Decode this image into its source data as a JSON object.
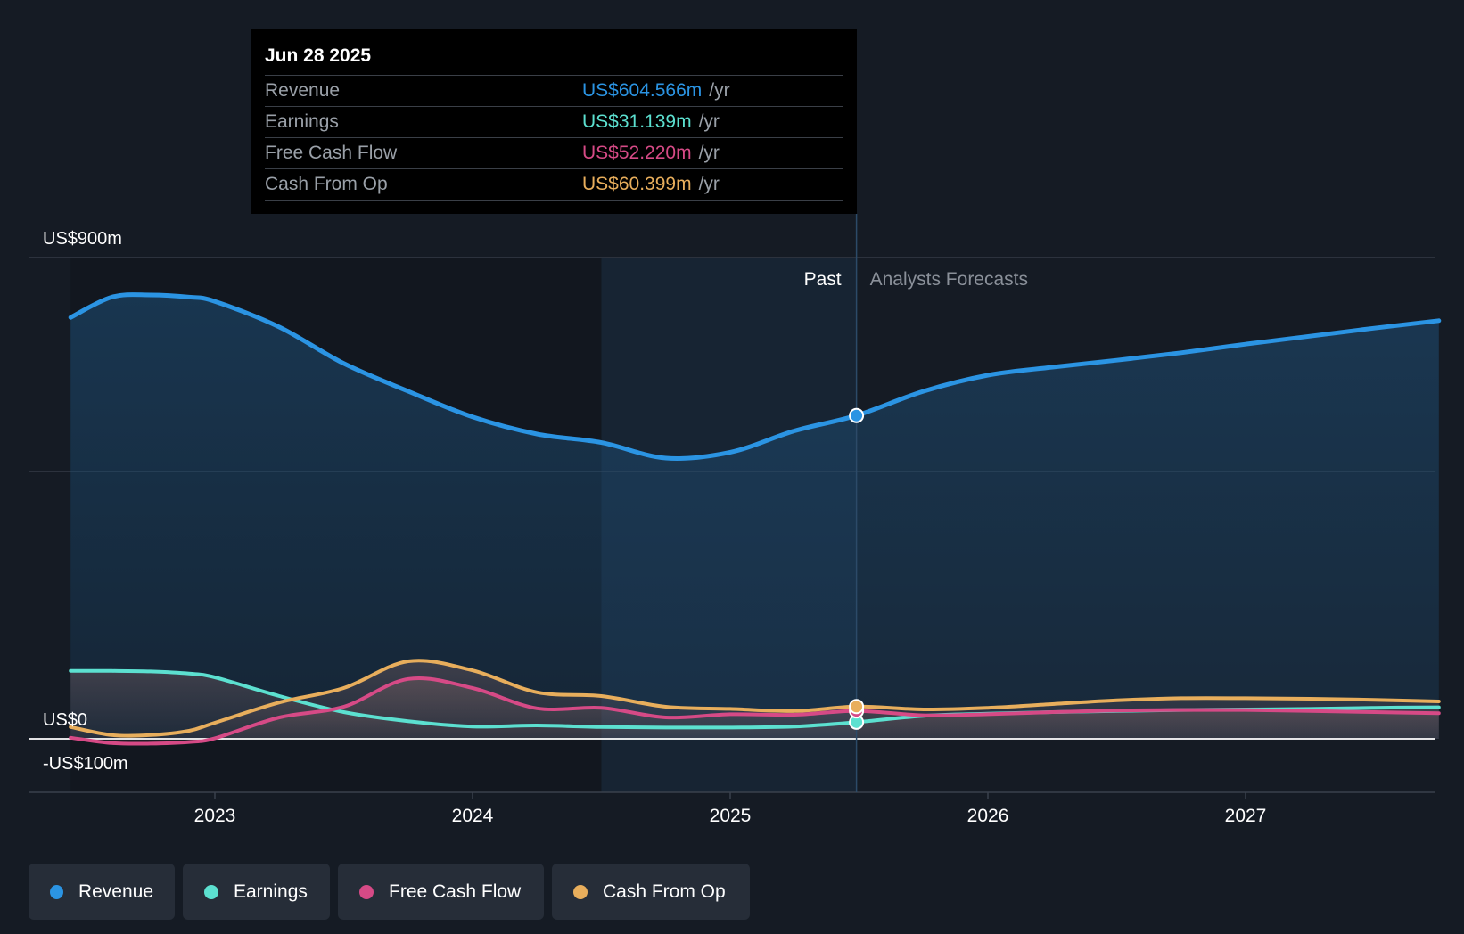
{
  "tooltip": {
    "date": "Jun 28 2025",
    "rows": [
      {
        "label": "Revenue",
        "value": "US$604.566m",
        "unit": "/yr",
        "color": "#2b94e3"
      },
      {
        "label": "Earnings",
        "value": "US$31.139m",
        "unit": "/yr",
        "color": "#5ce0d0"
      },
      {
        "label": "Free Cash Flow",
        "value": "US$52.220m",
        "unit": "/yr",
        "color": "#d64a86"
      },
      {
        "label": "Cash From Op",
        "value": "US$60.399m",
        "unit": "/yr",
        "color": "#e8ae5c"
      }
    ]
  },
  "period_labels": {
    "past": "Past",
    "forecast": "Analysts Forecasts"
  },
  "legend": [
    {
      "label": "Revenue",
      "color": "#2b94e3"
    },
    {
      "label": "Earnings",
      "color": "#5ce0d0"
    },
    {
      "label": "Free Cash Flow",
      "color": "#d64a86"
    },
    {
      "label": "Cash From Op",
      "color": "#e8ae5c"
    }
  ],
  "chart_data": {
    "type": "area",
    "title": "",
    "xlabel": "",
    "ylabel": "",
    "ylim": [
      -100,
      900
    ],
    "xlim": [
      2022.22,
      2027.75
    ],
    "y_tick_labels": [
      {
        "value": 900,
        "label": "US$900m"
      },
      {
        "value": 0,
        "label": "US$0"
      },
      {
        "value": -100,
        "label": "-US$100m"
      }
    ],
    "x_ticks": [
      2023,
      2024,
      2025,
      2026,
      2027
    ],
    "x_tick_labels": [
      "2023",
      "2024",
      "2025",
      "2026",
      "2027"
    ],
    "gridlines_y": [
      900,
      500
    ],
    "past_shade_start": 2024.5,
    "past_end": 2025.49,
    "legend_position": "bottom",
    "series": [
      {
        "name": "Revenue",
        "color": "#2b94e3",
        "stroke_width": 5,
        "points": [
          [
            2022.44,
            788
          ],
          [
            2022.6,
            826
          ],
          [
            2022.75,
            830
          ],
          [
            2022.9,
            826
          ],
          [
            2023.0,
            818
          ],
          [
            2023.25,
            770
          ],
          [
            2023.5,
            702
          ],
          [
            2023.75,
            650
          ],
          [
            2024.0,
            602
          ],
          [
            2024.25,
            570
          ],
          [
            2024.5,
            554
          ],
          [
            2024.75,
            525
          ],
          [
            2025.0,
            536
          ],
          [
            2025.25,
            576
          ],
          [
            2025.49,
            604.6
          ],
          [
            2025.75,
            650
          ],
          [
            2026.0,
            680
          ],
          [
            2026.25,
            695
          ],
          [
            2026.5,
            708
          ],
          [
            2026.75,
            722
          ],
          [
            2027.0,
            738
          ],
          [
            2027.25,
            753
          ],
          [
            2027.5,
            768
          ],
          [
            2027.75,
            782
          ]
        ],
        "marker": [
          2025.49,
          604.6
        ]
      },
      {
        "name": "Earnings",
        "color": "#5ce0d0",
        "stroke_width": 4,
        "points": [
          [
            2022.44,
            127
          ],
          [
            2022.6,
            127
          ],
          [
            2022.75,
            126
          ],
          [
            2022.9,
            122
          ],
          [
            2023.0,
            115
          ],
          [
            2023.25,
            80
          ],
          [
            2023.5,
            50
          ],
          [
            2023.75,
            33
          ],
          [
            2024.0,
            23
          ],
          [
            2024.25,
            25
          ],
          [
            2024.5,
            22
          ],
          [
            2024.75,
            21
          ],
          [
            2025.0,
            21
          ],
          [
            2025.25,
            23
          ],
          [
            2025.49,
            31.1
          ],
          [
            2025.75,
            43
          ],
          [
            2026.0,
            47
          ],
          [
            2026.25,
            50
          ],
          [
            2026.5,
            52
          ],
          [
            2026.75,
            54
          ],
          [
            2027.0,
            55
          ],
          [
            2027.25,
            56
          ],
          [
            2027.5,
            58
          ],
          [
            2027.75,
            59
          ]
        ],
        "marker": [
          2025.49,
          31.1
        ]
      },
      {
        "name": "Free Cash Flow",
        "color": "#d64a86",
        "stroke_width": 4,
        "points": [
          [
            2022.44,
            2
          ],
          [
            2022.6,
            -8
          ],
          [
            2022.75,
            -9
          ],
          [
            2022.9,
            -6
          ],
          [
            2023.0,
            1
          ],
          [
            2023.25,
            40
          ],
          [
            2023.5,
            60
          ],
          [
            2023.75,
            112
          ],
          [
            2024.0,
            95
          ],
          [
            2024.25,
            57
          ],
          [
            2024.5,
            58
          ],
          [
            2024.75,
            40
          ],
          [
            2025.0,
            46
          ],
          [
            2025.25,
            45
          ],
          [
            2025.49,
            52.2
          ],
          [
            2025.75,
            44
          ],
          [
            2026.0,
            46
          ],
          [
            2026.25,
            50
          ],
          [
            2026.5,
            53
          ],
          [
            2026.75,
            54
          ],
          [
            2027.0,
            54
          ],
          [
            2027.25,
            52
          ],
          [
            2027.5,
            50
          ],
          [
            2027.75,
            48
          ]
        ],
        "marker": [
          2025.49,
          52.2
        ]
      },
      {
        "name": "Cash From Op",
        "color": "#e8ae5c",
        "stroke_width": 4,
        "points": [
          [
            2022.44,
            22
          ],
          [
            2022.6,
            7
          ],
          [
            2022.75,
            7
          ],
          [
            2022.9,
            15
          ],
          [
            2023.0,
            30
          ],
          [
            2023.25,
            68
          ],
          [
            2023.5,
            95
          ],
          [
            2023.75,
            145
          ],
          [
            2024.0,
            128
          ],
          [
            2024.25,
            87
          ],
          [
            2024.5,
            80
          ],
          [
            2024.75,
            60
          ],
          [
            2025.0,
            56
          ],
          [
            2025.25,
            52
          ],
          [
            2025.49,
            60.4
          ],
          [
            2025.75,
            55
          ],
          [
            2026.0,
            58
          ],
          [
            2026.25,
            65
          ],
          [
            2026.5,
            72
          ],
          [
            2026.75,
            76
          ],
          [
            2027.0,
            76
          ],
          [
            2027.25,
            75
          ],
          [
            2027.5,
            73
          ],
          [
            2027.75,
            70
          ]
        ],
        "marker": [
          2025.49,
          60.4
        ]
      }
    ]
  }
}
